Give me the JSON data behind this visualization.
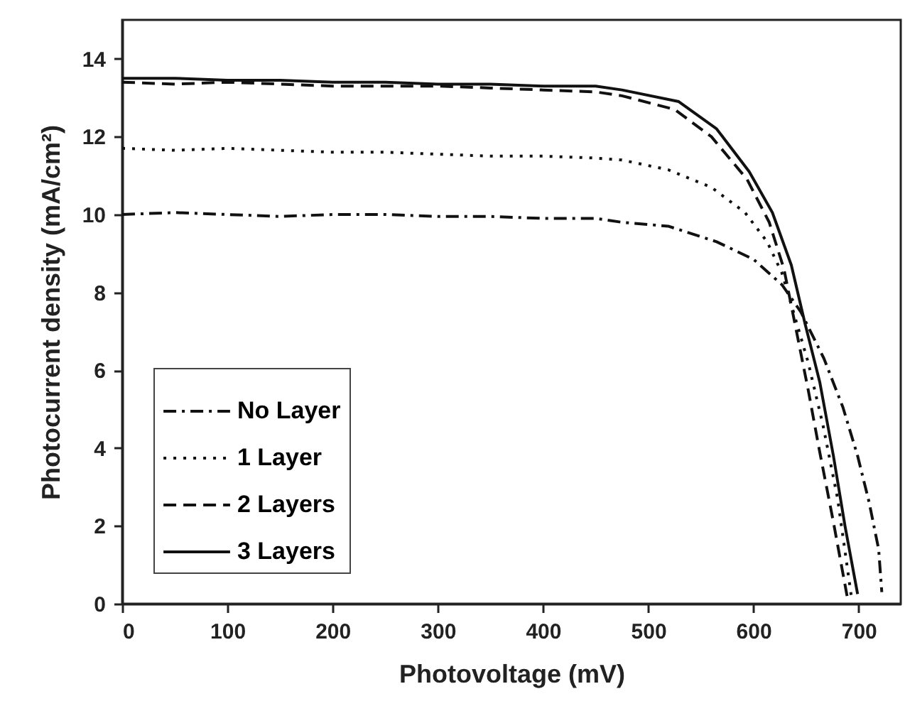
{
  "chart_data": {
    "type": "line",
    "xlabel": "Photovoltage (mV)",
    "ylabel": "Photocurrent density (mA/cm²)",
    "xlim": [
      0,
      740
    ],
    "xticks": [
      0,
      100,
      200,
      300,
      400,
      500,
      600,
      700
    ],
    "ylim": [
      0,
      15
    ],
    "yticks": [
      0,
      2,
      4,
      6,
      8,
      10,
      12,
      14
    ],
    "legend": "bottom left",
    "grid": false,
    "marker": "none",
    "series": [
      {
        "name": "No Layer",
        "color": "#111111",
        "line_style": "dashdot",
        "x": [
          0,
          50,
          100,
          150,
          200,
          250,
          300,
          350,
          400,
          450,
          475,
          519,
          565,
          600,
          627,
          645,
          667,
          685,
          699,
          710,
          719,
          722
        ],
        "values": [
          10.0,
          10.05,
          10.0,
          9.95,
          10.0,
          10.0,
          9.95,
          9.95,
          9.9,
          9.9,
          9.8,
          9.7,
          9.3,
          8.85,
          8.2,
          7.5,
          6.3,
          5.05,
          3.8,
          2.6,
          1.4,
          0.3
        ]
      },
      {
        "name": "1 Layer",
        "color": "#111111",
        "line_style": "dotted",
        "x": [
          0,
          50,
          100,
          150,
          200,
          250,
          300,
          350,
          400,
          450,
          475,
          519,
          560,
          592,
          613,
          627,
          638,
          652,
          666,
          680,
          693
        ],
        "values": [
          11.7,
          11.65,
          11.7,
          11.65,
          11.6,
          11.6,
          11.55,
          11.5,
          11.5,
          11.45,
          11.4,
          11.15,
          10.7,
          10.05,
          9.3,
          8.5,
          7.5,
          6.2,
          4.6,
          2.7,
          0.2
        ]
      },
      {
        "name": "2 Layers",
        "color": "#111111",
        "line_style": "dashed",
        "x": [
          0,
          50,
          100,
          150,
          200,
          250,
          300,
          350,
          400,
          450,
          475,
          525,
          560,
          594,
          615,
          629,
          652,
          663,
          676,
          689
        ],
        "values": [
          13.4,
          13.35,
          13.4,
          13.35,
          13.3,
          13.3,
          13.3,
          13.25,
          13.2,
          13.15,
          13.05,
          12.7,
          12.0,
          10.9,
          9.8,
          8.6,
          5.5,
          3.9,
          2.1,
          0.2
        ]
      },
      {
        "name": "3 Layers",
        "color": "#111111",
        "line_style": "solid",
        "x": [
          0,
          50,
          100,
          150,
          200,
          250,
          300,
          350,
          400,
          450,
          475,
          529,
          565,
          596,
          618,
          636,
          649,
          663,
          676,
          687,
          699
        ],
        "values": [
          13.5,
          13.5,
          13.45,
          13.45,
          13.4,
          13.4,
          13.35,
          13.35,
          13.3,
          13.3,
          13.2,
          12.9,
          12.2,
          11.1,
          10.05,
          8.7,
          7.2,
          5.7,
          3.8,
          2.0,
          0.25
        ]
      }
    ]
  }
}
